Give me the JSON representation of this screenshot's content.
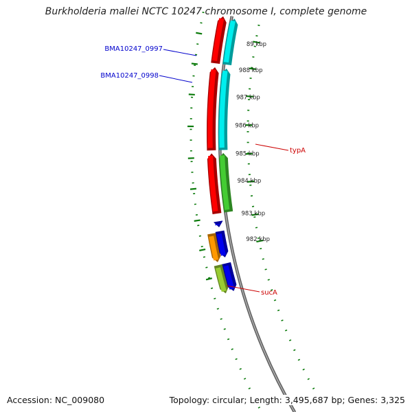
{
  "title": "Burkholderia mallei NCTC 10247 chromosome I, complete genome",
  "footer": {
    "accession": "Accession: NC_009080",
    "topology": "Topology: circular; Length: 3,495,687 bp; Genes: 3,325"
  },
  "colors": {
    "backbone": "#888888",
    "tick": "#0a7a0a",
    "label_blue": "#0000cc",
    "label_red": "#cc0000",
    "gene_red": "#ff0000",
    "gene_green": "#44cc33",
    "gene_cyan": "#00eeee",
    "gene_blue": "#0000ee",
    "gene_orange": "#ff9900",
    "gene_olive": "#99cc33"
  },
  "chart_data": {
    "type": "genome-map",
    "kbp_ticks": [
      {
        "label": "982 kbp"
      },
      {
        "label": "983 kbp"
      },
      {
        "label": "984 kbp"
      },
      {
        "label": "985 kbp"
      },
      {
        "label": "986 kbp"
      },
      {
        "label": "987 kbp"
      },
      {
        "label": "988 kbp"
      },
      {
        "label": "89 kbp"
      }
    ],
    "gene_labels": [
      {
        "name": "BMA10247_0997",
        "color": "#0000cc"
      },
      {
        "name": "BMA10247_0998",
        "color": "#0000cc"
      },
      {
        "name": "typA",
        "color": "#cc0000"
      },
      {
        "name": "sucA",
        "color": "#cc0000"
      }
    ],
    "genes": [
      {
        "id": "olive-gene",
        "color": "#99cc33"
      },
      {
        "id": "upper-blue-gene",
        "color": "#0000ee"
      },
      {
        "id": "orange-gene",
        "color": "#ff9900"
      },
      {
        "id": "BMA10247_0997",
        "color": "#0000ee"
      },
      {
        "id": "BMA10247_0998",
        "color": "#0000ee"
      },
      {
        "id": "typA-red",
        "color": "#ff0000"
      },
      {
        "id": "typA",
        "color": "#44cc33"
      },
      {
        "id": "sucA-red",
        "color": "#ff0000"
      },
      {
        "id": "sucA",
        "color": "#00eeee"
      },
      {
        "id": "lower-red-gene",
        "color": "#ff0000"
      },
      {
        "id": "lower-cyan-gene",
        "color": "#00eeee"
      }
    ]
  }
}
